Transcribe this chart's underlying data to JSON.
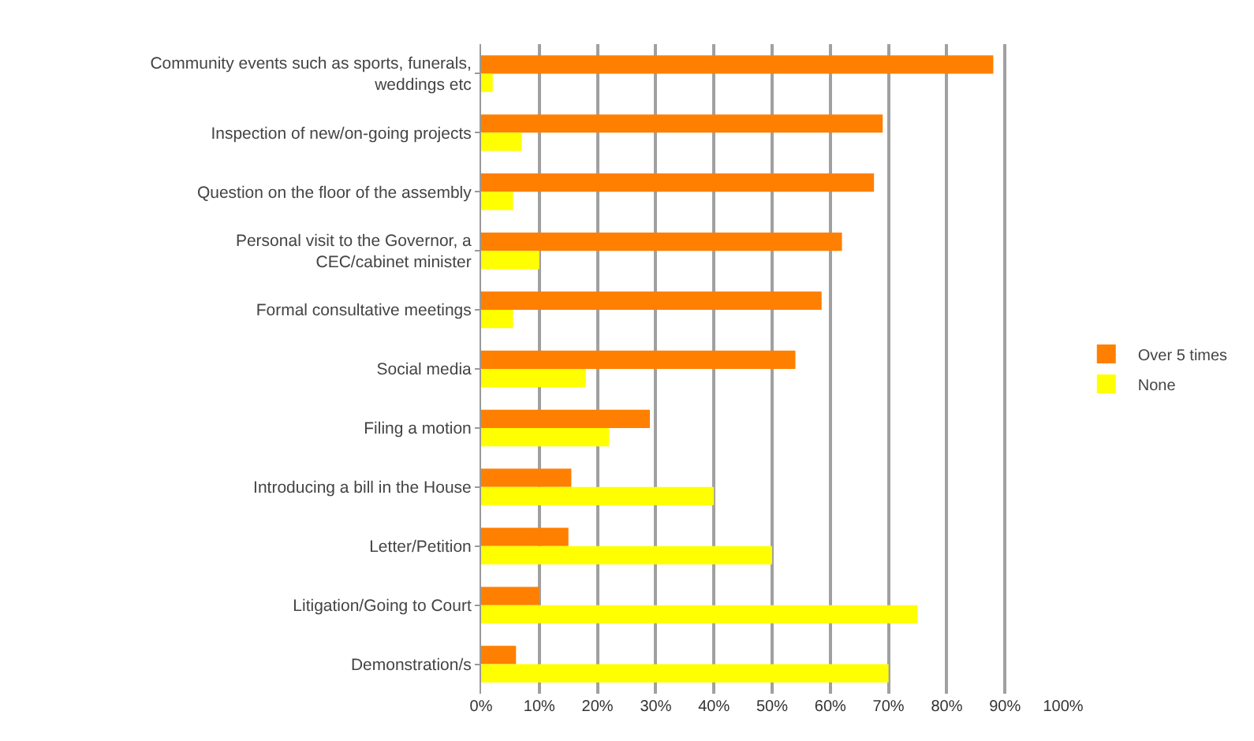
{
  "chart_data": {
    "type": "bar",
    "orientation": "horizontal",
    "categories": [
      "Community events such as sports, funerals, weddings etc",
      "Inspection of new/on-going projects",
      "Question on the floor of the assembly",
      "Personal visit to the Governor, a CEC/cabinet minister",
      "Formal consultative meetings",
      "Social media",
      "Filing a motion",
      "Introducing a bill in the House",
      "Letter/Petition",
      "Litigation/Going to Court",
      "Demonstration/s"
    ],
    "series": [
      {
        "name": "Over 5 times",
        "color": "#ff7f00",
        "values": [
          88,
          69,
          67.5,
          62,
          58.5,
          54,
          29,
          15.5,
          15,
          10,
          6
        ]
      },
      {
        "name": "None",
        "color": "#ffff00",
        "values": [
          2,
          7,
          5.5,
          10,
          5.5,
          18,
          22,
          40,
          50,
          75,
          70
        ]
      }
    ],
    "xlim": [
      0,
      100
    ],
    "xticks": [
      {
        "value": 0,
        "label": "0%"
      },
      {
        "value": 10,
        "label": "10%"
      },
      {
        "value": 20,
        "label": "20%"
      },
      {
        "value": 30,
        "label": "30%"
      },
      {
        "value": 40,
        "label": "40%"
      },
      {
        "value": 50,
        "label": "50%"
      },
      {
        "value": 60,
        "label": "60%"
      },
      {
        "value": 70,
        "label": "70%"
      },
      {
        "value": 80,
        "label": "80%"
      },
      {
        "value": 90,
        "label": "90%"
      },
      {
        "value": 100,
        "label": "100%"
      }
    ],
    "grid": "x",
    "legend": "right"
  }
}
